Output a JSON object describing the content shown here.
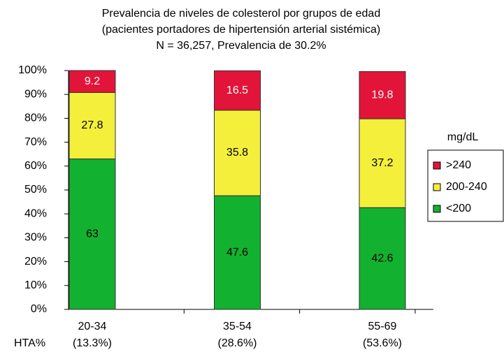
{
  "chart_data": {
    "type": "stacked_bar",
    "title": "Prevalencia de niveles de colesterol por grupos de edad",
    "subtitle": "(pacientes portadores de hipertensión arterial sistémica)",
    "note": "N = 36,257, Prevalencia de 30.2%",
    "categories": [
      "20-34",
      "35-54",
      "55-69"
    ],
    "x_sublabels": [
      "(13.3%)",
      "(28.6%)",
      "(53.6%)"
    ],
    "x_label": "HTA%",
    "legend_title": "mg/dL",
    "series": [
      {
        "name": "<200",
        "color": "#12b12f",
        "label_color": "#000000",
        "values": [
          63,
          47.6,
          42.6
        ]
      },
      {
        "name": "200-240",
        "color": "#f4ef3a",
        "label_color": "#000000",
        "values": [
          27.8,
          35.8,
          37.2
        ]
      },
      {
        "name": ">240",
        "color": "#e2143a",
        "label_color": "#ffffff",
        "values": [
          9.2,
          16.5,
          19.8
        ]
      }
    ],
    "ylim": [
      0,
      100
    ],
    "yticks": [
      {
        "value": 0,
        "label": "0%"
      },
      {
        "value": 10,
        "label": "10%"
      },
      {
        "value": 20,
        "label": "20%"
      },
      {
        "value": 30,
        "label": "30%"
      },
      {
        "value": 40,
        "label": "40%"
      },
      {
        "value": 50,
        "label": "50%"
      },
      {
        "value": 60,
        "label": "60%"
      },
      {
        "value": 70,
        "label": "70%"
      },
      {
        "value": 80,
        "label": "80%"
      },
      {
        "value": 90,
        "label": "90%"
      },
      {
        "value": 100,
        "label": "100%"
      }
    ],
    "legend_position": "right"
  }
}
